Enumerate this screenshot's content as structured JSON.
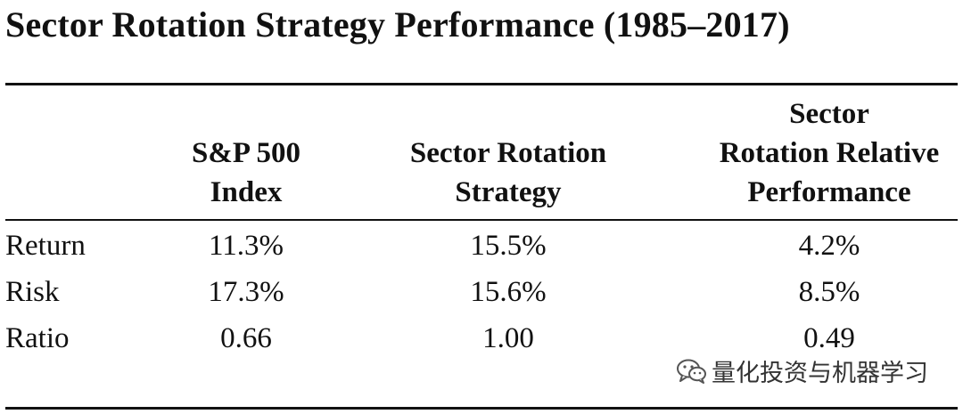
{
  "title": "Sector Rotation Strategy Performance (1985–2017)",
  "columns": [
    {
      "lines": [
        "S&P 500",
        "Index"
      ]
    },
    {
      "lines": [
        "Sector Rotation",
        "Strategy"
      ]
    },
    {
      "lines": [
        "Sector",
        "Rotation Relative",
        "Performance"
      ]
    }
  ],
  "rows": [
    {
      "label": "Return",
      "values": [
        "11.3%",
        "15.5%",
        "4.2%"
      ]
    },
    {
      "label": "Risk",
      "values": [
        "17.3%",
        "15.6%",
        "8.5%"
      ]
    },
    {
      "label": "Ratio",
      "values": [
        "0.66",
        "1.00",
        "0.49"
      ]
    }
  ],
  "watermark": {
    "text": "量化投资与机器学习",
    "icon": "wechat-icon"
  }
}
